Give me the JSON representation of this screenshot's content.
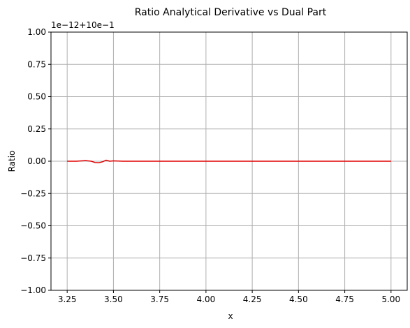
{
  "chart_data": {
    "type": "line",
    "title": "Ratio Analytical Derivative vs Dual Part",
    "xlabel": "x",
    "ylabel": "Ratio",
    "offset_text": "1e−12+10e−1",
    "xlim": [
      3.1625,
      5.0875
    ],
    "ylim": [
      -1.0,
      1.0
    ],
    "grid": true,
    "x_ticks": [
      3.25,
      3.5,
      3.75,
      4.0,
      4.25,
      4.5,
      4.75,
      5.0
    ],
    "x_tick_labels": [
      "3.25",
      "3.50",
      "3.75",
      "4.00",
      "4.25",
      "4.50",
      "4.75",
      "5.00"
    ],
    "y_ticks": [
      -1.0,
      -0.75,
      -0.5,
      -0.25,
      0.0,
      0.25,
      0.5,
      0.75,
      1.0
    ],
    "y_tick_labels": [
      "−1.00",
      "−0.75",
      "−0.50",
      "−0.25",
      "0.00",
      "0.25",
      "0.50",
      "0.75",
      "1.00"
    ],
    "series": [
      {
        "color": "#e00000",
        "x": [
          3.25,
          3.3,
          3.35,
          3.38,
          3.4,
          3.42,
          3.44,
          3.46,
          3.48,
          3.5,
          3.55,
          3.6,
          3.75,
          4.0,
          4.25,
          4.5,
          4.75,
          5.0
        ],
        "y": [
          0.0,
          0.0,
          0.005,
          0.0,
          -0.01,
          -0.012,
          -0.005,
          0.008,
          0.0,
          0.003,
          0.0,
          0.0,
          0.0,
          0.0,
          0.0,
          0.0,
          0.0,
          0.0
        ]
      }
    ]
  }
}
